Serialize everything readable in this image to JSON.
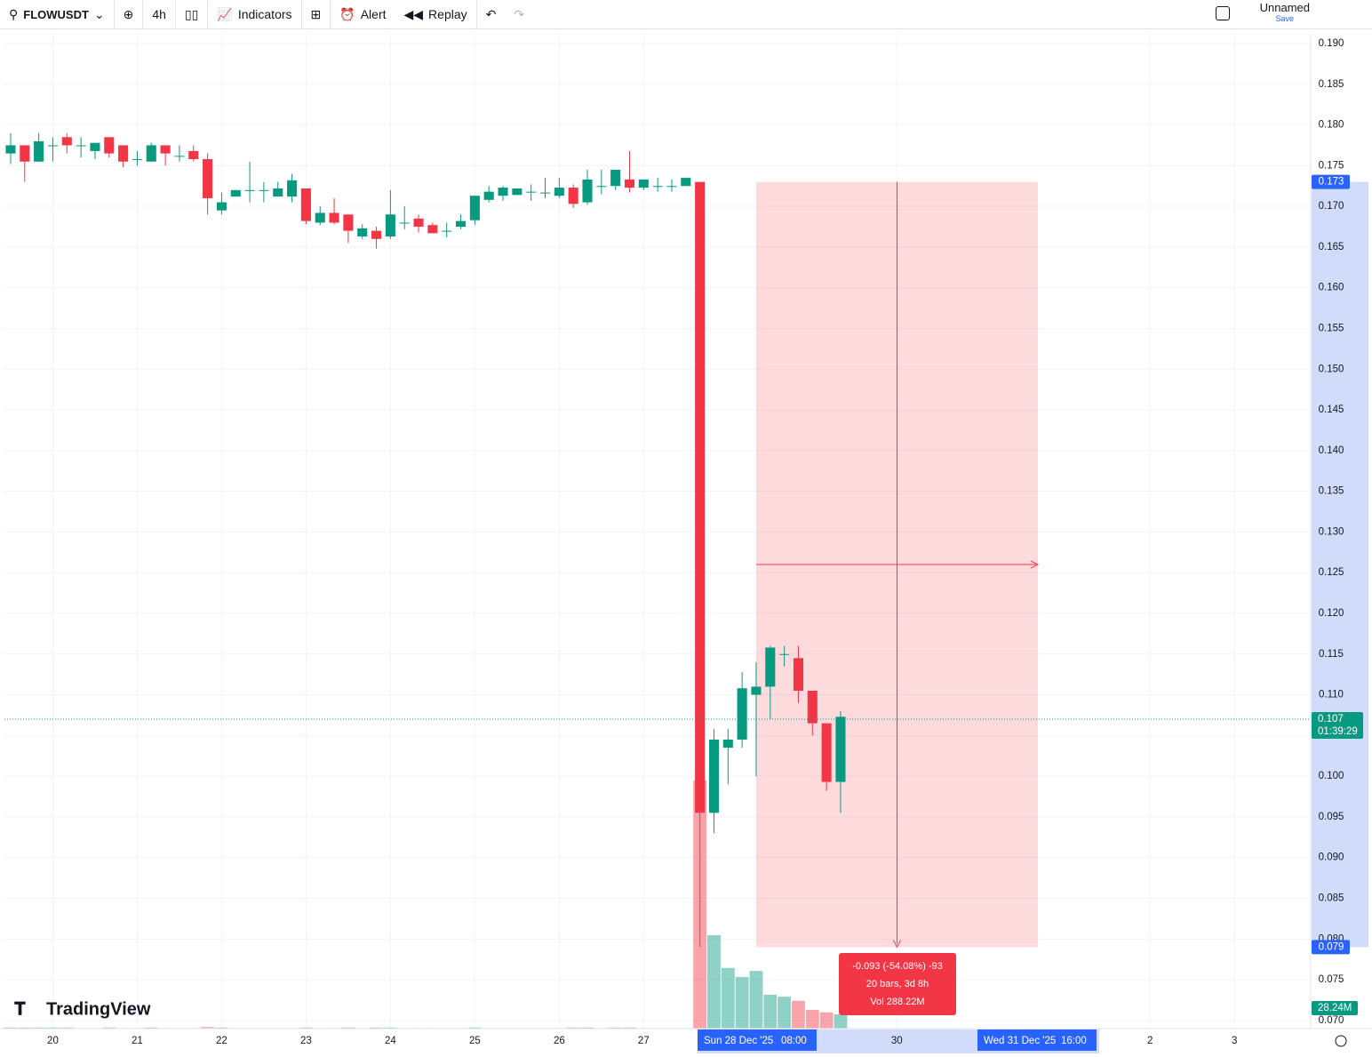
{
  "toolbar": {
    "symbol": "FLOWUSDT",
    "interval": "4h",
    "indicators": "Indicators",
    "alert": "Alert",
    "replay": "Replay",
    "layout_name": "Unnamed",
    "save": "Save"
  },
  "watermark": "TradingView",
  "chart_data": {
    "type": "candlestick",
    "ylim": [
      0.069,
      0.1912
    ],
    "xlim": [
      -0.44,
      92.42
    ],
    "yticks": [
      {
        "value": 0.07,
        "label": "0.070"
      },
      {
        "value": 0.075,
        "label": "0.075"
      },
      {
        "value": 0.08,
        "label": "0.080"
      },
      {
        "value": 0.085,
        "label": "0.085"
      },
      {
        "value": 0.09,
        "label": "0.090"
      },
      {
        "value": 0.095,
        "label": "0.095"
      },
      {
        "value": 0.1,
        "label": "0.100"
      },
      {
        "value": 0.105,
        "label": "0.105"
      },
      {
        "value": 0.11,
        "label": "0.110"
      },
      {
        "value": 0.115,
        "label": "0.115"
      },
      {
        "value": 0.12,
        "label": "0.120"
      },
      {
        "value": 0.125,
        "label": "0.125"
      },
      {
        "value": 0.13,
        "label": "0.130"
      },
      {
        "value": 0.135,
        "label": "0.135"
      },
      {
        "value": 0.14,
        "label": "0.140"
      },
      {
        "value": 0.145,
        "label": "0.145"
      },
      {
        "value": 0.15,
        "label": "0.150"
      },
      {
        "value": 0.155,
        "label": "0.155"
      },
      {
        "value": 0.16,
        "label": "0.160"
      },
      {
        "value": 0.165,
        "label": "0.165"
      },
      {
        "value": 0.17,
        "label": "0.170"
      },
      {
        "value": 0.175,
        "label": "0.175"
      },
      {
        "value": 0.18,
        "label": "0.180"
      },
      {
        "value": 0.185,
        "label": "0.185"
      },
      {
        "value": 0.19,
        "label": "0.190"
      }
    ],
    "xticks": [
      {
        "value": 3,
        "label": "20"
      },
      {
        "value": 9,
        "label": "21"
      },
      {
        "value": 15,
        "label": "22"
      },
      {
        "value": 21,
        "label": "23"
      },
      {
        "value": 27,
        "label": "24"
      },
      {
        "value": 33,
        "label": "25"
      },
      {
        "value": 39,
        "label": "26"
      },
      {
        "value": 45,
        "label": "27"
      },
      {
        "value": 63,
        "label": "30"
      },
      {
        "value": 81,
        "label": "2"
      },
      {
        "value": 87,
        "label": "3"
      }
    ],
    "grid": true,
    "up_color": "#089981",
    "down_color": "#f23645",
    "open": [
      0.1765,
      0.1775,
      0.1755,
      0.1775,
      0.1785,
      0.1775,
      0.1768,
      0.1785,
      0.1775,
      0.1758,
      0.1755,
      0.1775,
      0.1762,
      0.1768,
      0.1758,
      0.1695,
      0.1712,
      0.172,
      0.172,
      0.1712,
      0.1712,
      0.1722,
      0.168,
      0.1692,
      0.169,
      0.1663,
      0.167,
      0.1663,
      0.168,
      0.1685,
      0.1677,
      0.167,
      0.1675,
      0.1683,
      0.1708,
      0.1713,
      0.1714,
      0.1718,
      0.1717,
      0.1713,
      0.1723,
      0.1705,
      0.1725,
      0.1725,
      0.1733,
      0.1723,
      0.1725,
      0.1725,
      0.1725,
      0.173,
      0.0955,
      0.1035,
      0.1045,
      0.11,
      0.111,
      0.115,
      0.1145,
      0.1105,
      0.1065,
      0.0993
    ],
    "high": [
      0.179,
      0.1775,
      0.179,
      0.1785,
      0.179,
      0.1785,
      0.1778,
      0.1785,
      0.1775,
      0.1768,
      0.1778,
      0.1775,
      0.1775,
      0.1775,
      0.1765,
      0.1717,
      0.172,
      0.1755,
      0.173,
      0.173,
      0.174,
      0.1722,
      0.17,
      0.171,
      0.169,
      0.1678,
      0.1675,
      0.172,
      0.17,
      0.169,
      0.168,
      0.168,
      0.169,
      0.1713,
      0.1725,
      0.1725,
      0.1722,
      0.1727,
      0.1735,
      0.1735,
      0.1727,
      0.1745,
      0.1745,
      0.1745,
      0.1768,
      0.1733,
      0.1735,
      0.1733,
      0.1735,
      0.173,
      0.1058,
      0.1058,
      0.1128,
      0.114,
      0.116,
      0.116,
      0.116,
      0.1105,
      0.1065,
      0.108
    ],
    "low": [
      0.1752,
      0.173,
      0.1755,
      0.1755,
      0.1765,
      0.176,
      0.1758,
      0.176,
      0.1748,
      0.175,
      0.1755,
      0.175,
      0.1755,
      0.1755,
      0.169,
      0.169,
      0.1712,
      0.1705,
      0.1705,
      0.1712,
      0.1705,
      0.1678,
      0.1677,
      0.1678,
      0.1655,
      0.166,
      0.1648,
      0.166,
      0.1672,
      0.1668,
      0.1667,
      0.1662,
      0.1672,
      0.1677,
      0.1705,
      0.1707,
      0.1714,
      0.1707,
      0.171,
      0.171,
      0.1698,
      0.1702,
      0.1715,
      0.172,
      0.1717,
      0.172,
      0.1718,
      0.1718,
      0.1725,
      0.079,
      0.093,
      0.099,
      0.1035,
      0.1,
      0.107,
      0.1135,
      0.109,
      0.105,
      0.0982,
      0.0955
    ],
    "close": [
      0.1775,
      0.1755,
      0.178,
      0.1775,
      0.1775,
      0.1775,
      0.1778,
      0.1765,
      0.1755,
      0.1758,
      0.1775,
      0.1765,
      0.1762,
      0.1758,
      0.171,
      0.1705,
      0.172,
      0.172,
      0.172,
      0.1722,
      0.1732,
      0.1682,
      0.1692,
      0.168,
      0.167,
      0.1673,
      0.166,
      0.169,
      0.168,
      0.1675,
      0.1667,
      0.167,
      0.1682,
      0.1713,
      0.1718,
      0.1723,
      0.1722,
      0.1718,
      0.1717,
      0.1723,
      0.1703,
      0.1733,
      0.1725,
      0.1745,
      0.1723,
      0.1733,
      0.1725,
      0.1725,
      0.1735,
      0.0955,
      0.1045,
      0.1045,
      0.1108,
      0.111,
      0.1158,
      0.115,
      0.1105,
      0.1065,
      0.0993,
      0.1073
    ],
    "volume": [
      2,
      2,
      2,
      2,
      2,
      1,
      1,
      2,
      1,
      1,
      2,
      1,
      1,
      1,
      3,
      2,
      1,
      1,
      1,
      1,
      1,
      2,
      1,
      1,
      2,
      1,
      2,
      2,
      1,
      1,
      1,
      1,
      1,
      2,
      1,
      1,
      1,
      1,
      1,
      1,
      2,
      2,
      1,
      2,
      2,
      1,
      1,
      1,
      1,
      491,
      185,
      120,
      102,
      114,
      67,
      63,
      55,
      37,
      32,
      28.24
    ],
    "volume_label": "28.24M",
    "price_labels": [
      {
        "value": 0.173,
        "label": "0.173"
      },
      {
        "value": 0.079,
        "label": "0.079"
      }
    ],
    "current_price": {
      "value": 0.107,
      "label": "0.107",
      "countdown": "01:39:29"
    },
    "measure": {
      "change": "-0.093 (-54.08%) -93",
      "bars": "20 bars, 3d 8h",
      "volume": "Vol 288.22M",
      "start_date": "Sun 28 Dec '25",
      "start_time": "08:00",
      "end_date": "Wed 31 Dec '25",
      "end_time": "16:00"
    }
  }
}
